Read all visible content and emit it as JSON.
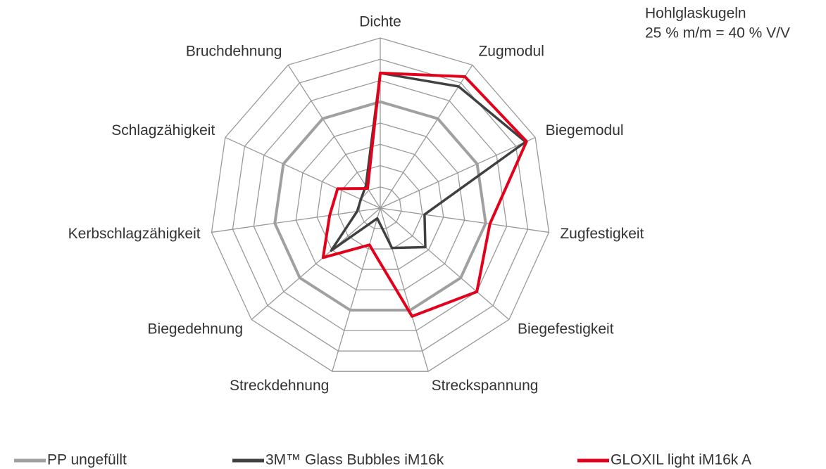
{
  "chart_data": {
    "type": "radar",
    "annotation": [
      "Hohlglaskugeln",
      "25 % m/m = 40 % V/V"
    ],
    "categories": [
      "Dichte",
      "Zugmodul",
      "Biegemodul",
      "Zugfestigkeit",
      "Biegefestigkeit",
      "Streckspannung",
      "Streckdehnung",
      "Biegedehnung",
      "Kerbschlagzähigkeit",
      "Schlagzähigkeit",
      "Bruchdehnung"
    ],
    "rlim": [
      0,
      160
    ],
    "rticks": [
      20,
      40,
      60,
      80,
      100,
      120,
      140,
      160
    ],
    "grid": true,
    "series": [
      {
        "name": "PP ungefüllt",
        "color": "#a0a0a0",
        "values": [
          100,
          100,
          100,
          100,
          100,
          100,
          100,
          100,
          100,
          100,
          100
        ]
      },
      {
        "name": "3M™ Glass Bubbles iM16k",
        "color": "#404040",
        "values": [
          127,
          136,
          150,
          42,
          56,
          39,
          10,
          61,
          22,
          20,
          25
        ]
      },
      {
        "name": "GLOXIL light iM16k A",
        "color": "#e2001a",
        "values": [
          127,
          147,
          151,
          104,
          120,
          106,
          36,
          71,
          48,
          44,
          22
        ]
      }
    ],
    "legend": "bottom"
  }
}
